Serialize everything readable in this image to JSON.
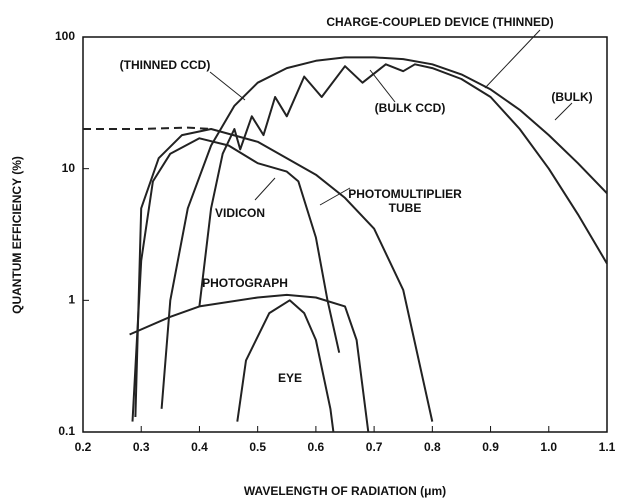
{
  "chart_data": {
    "type": "line",
    "x_label": "WAVELENGTH OF RADIATION (μm)",
    "y_label": "QUANTUM EFFICIENCY (%)",
    "annotations": [
      "CHARGE-COUPLED DEVICE (THINNED)",
      "(BULK)"
    ],
    "xlim": [
      0.2,
      1.1
    ],
    "xticks": [
      0.2,
      0.3,
      0.4,
      0.5,
      0.6,
      0.7,
      0.8,
      0.9,
      {
        "value": 1,
        "label": "1.0"
      },
      1.1
    ],
    "ylim": [
      0.1,
      100
    ],
    "yticks": [
      0.1,
      1,
      10,
      100
    ],
    "log_y": true,
    "color": "#222222",
    "series": [
      {
        "name": "(THINNED CCD)",
        "x": [
          0.335,
          0.35,
          0.38,
          0.42,
          0.46,
          0.5,
          0.55,
          0.6,
          0.65,
          0.7,
          0.75,
          0.8,
          0.85,
          0.9,
          0.95,
          1.0,
          1.05,
          1.1
        ],
        "values": [
          0.15,
          1,
          5,
          15,
          30,
          45,
          58,
          66,
          70,
          70,
          68,
          62,
          52,
          40,
          28,
          18,
          11,
          6.5
        ]
      },
      {
        "name": "(BULK CCD)",
        "x": [
          0.4,
          0.42,
          0.44,
          0.46,
          0.47,
          0.49,
          0.51,
          0.53,
          0.55,
          0.58,
          0.61,
          0.65,
          0.68,
          0.72,
          0.75,
          0.77,
          0.8,
          0.85,
          0.9,
          0.95,
          1.0,
          1.05,
          1.1
        ],
        "values": [
          0.9,
          5,
          13,
          20,
          14,
          25,
          18,
          35,
          25,
          50,
          35,
          60,
          45,
          62,
          55,
          62,
          58,
          48,
          35,
          20,
          10,
          4.5,
          1.9
        ]
      },
      {
        "dashed": true,
        "x": [
          0.2,
          0.3,
          0.38,
          0.42
        ],
        "values": [
          20,
          20,
          20.5,
          20
        ]
      },
      {
        "name": "VIDICON",
        "x": [
          0.285,
          0.3,
          0.32,
          0.35,
          0.4,
          0.45,
          0.5,
          0.55,
          0.57,
          0.6,
          0.62,
          0.64
        ],
        "values": [
          0.12,
          2,
          8,
          13,
          17,
          15,
          11,
          9.5,
          8,
          3,
          1,
          0.4
        ]
      },
      {
        "name": "PHOTOMULTIPLIER TUBE",
        "x": [
          0.29,
          0.3,
          0.33,
          0.37,
          0.42,
          0.5,
          0.6,
          0.65,
          0.7,
          0.75,
          0.8
        ],
        "values": [
          0.13,
          5,
          12,
          18,
          20,
          16,
          9,
          6,
          3.5,
          1.2,
          0.12
        ]
      },
      {
        "name": "PHOTOGRAPH",
        "x": [
          0.28,
          0.35,
          0.4,
          0.5,
          0.55,
          0.6,
          0.65,
          0.67,
          0.69
        ],
        "values": [
          0.55,
          0.75,
          0.9,
          1.05,
          1.1,
          1.05,
          0.9,
          0.5,
          0.1
        ]
      },
      {
        "name": "EYE",
        "x": [
          0.465,
          0.48,
          0.52,
          0.555,
          0.58,
          0.6,
          0.625,
          0.63
        ],
        "values": [
          0.12,
          0.35,
          0.8,
          1,
          0.8,
          0.5,
          0.15,
          0.1
        ]
      }
    ]
  }
}
